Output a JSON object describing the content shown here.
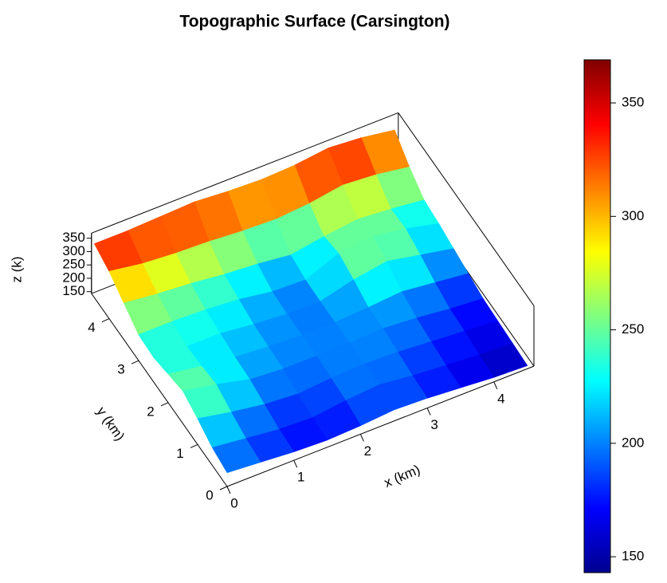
{
  "chart_data": {
    "type": "surface",
    "title": "Topographic Surface (Carsington)",
    "x_label": "x (km)",
    "y_label": "y (km)",
    "z_label": "z (k)",
    "colormap": "jet",
    "x": [
      0,
      0.5,
      1,
      1.5,
      2,
      2.5,
      3,
      3.5,
      4,
      4.5
    ],
    "y": [
      0,
      0.5,
      1,
      1.5,
      2,
      2.5,
      3,
      3.5,
      4,
      4.5
    ],
    "z": [
      [
        195,
        185,
        175,
        170,
        175,
        185,
        180,
        170,
        160,
        155
      ],
      [
        210,
        195,
        180,
        175,
        190,
        200,
        185,
        175,
        165,
        160
      ],
      [
        240,
        215,
        195,
        185,
        195,
        200,
        195,
        185,
        175,
        165
      ],
      [
        265,
        240,
        210,
        200,
        200,
        200,
        205,
        195,
        180,
        170
      ],
      [
        250,
        230,
        215,
        205,
        200,
        198,
        205,
        215,
        200,
        185
      ],
      [
        235,
        225,
        225,
        210,
        200,
        198,
        230,
        250,
        225,
        200
      ],
      [
        240,
        240,
        235,
        225,
        205,
        200,
        250,
        265,
        245,
        215
      ],
      [
        280,
        265,
        255,
        240,
        230,
        215,
        235,
        250,
        240,
        225
      ],
      [
        320,
        300,
        290,
        285,
        275,
        270,
        280,
        300,
        290,
        270
      ],
      [
        345,
        345,
        350,
        355,
        345,
        340,
        345,
        360,
        350,
        330
      ]
    ],
    "xlim": [
      0,
      4.6
    ],
    "ylim": [
      0,
      4.6
    ],
    "zlim": [
      143,
      369
    ],
    "xticks": [
      0,
      1,
      2,
      3,
      4
    ],
    "yticks": [
      0,
      1,
      2,
      3,
      4
    ],
    "zticks": [
      150,
      200,
      250,
      300,
      350
    ],
    "colorbar_ticks": [
      150,
      200,
      250,
      300,
      350
    ]
  }
}
